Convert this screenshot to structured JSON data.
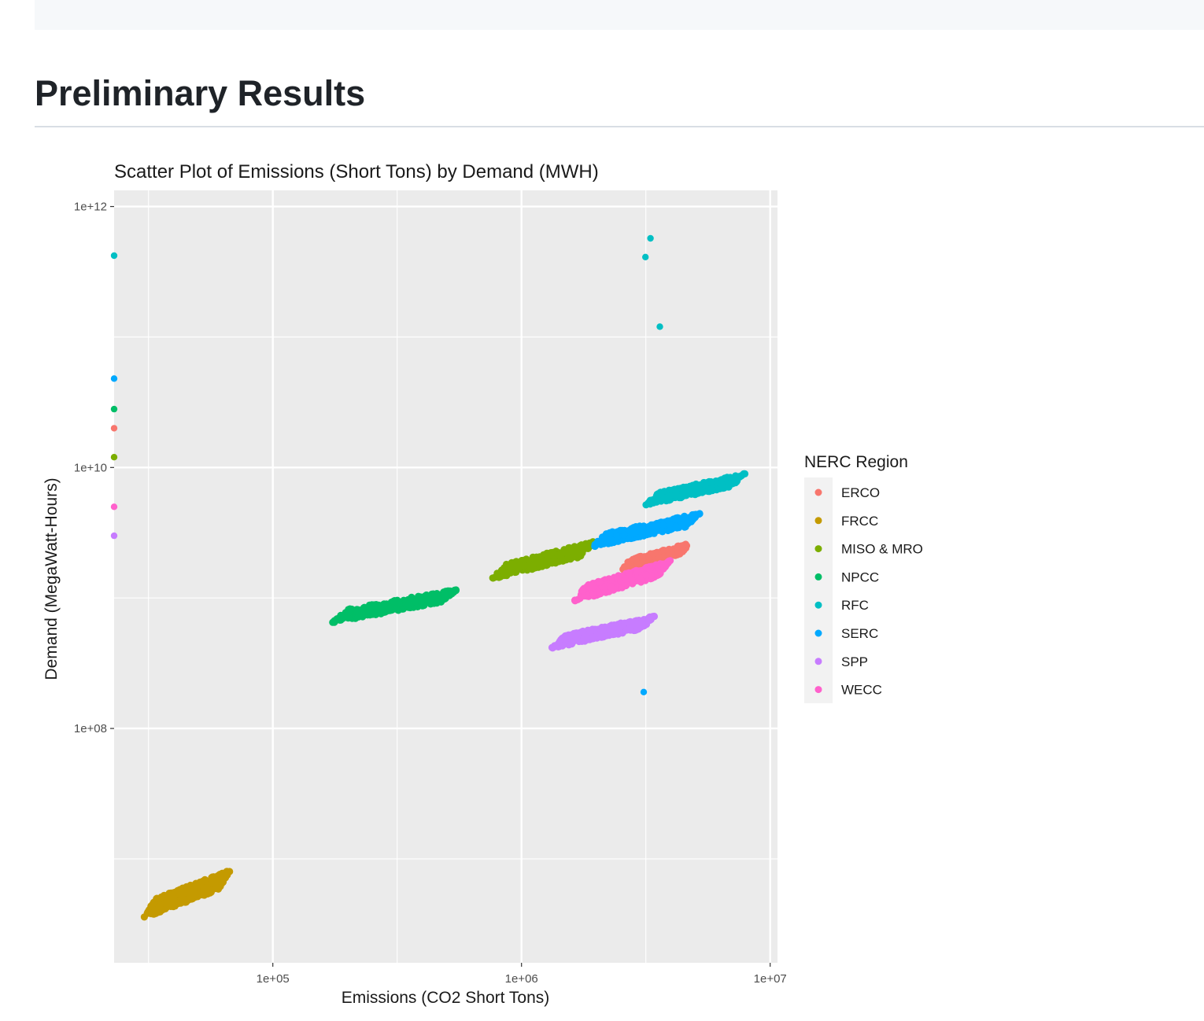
{
  "page": {
    "heading": "Preliminary Results"
  },
  "chart_data": {
    "type": "scatter",
    "title": "Scatter Plot of Emissions (Short Tons) by Demand (MWH)",
    "xlabel": "Emissions (CO2 Short Tons)",
    "ylabel": "Demand (MegaWatt-Hours)",
    "x_scale": "log10",
    "y_scale": "log10",
    "xlim": [
      23000,
      10700000
    ],
    "ylim": [
      1600000,
      1330000000000
    ],
    "x_ticks": [
      100000,
      1000000,
      10000000
    ],
    "x_tick_labels": [
      "1e+05",
      "1e+06",
      "1e+07"
    ],
    "y_ticks": [
      100000000,
      10000000000,
      1000000000000
    ],
    "y_tick_labels": [
      "1e+08",
      "1e+10",
      "1e+12"
    ],
    "grid": true,
    "legend_title": "NERC Region",
    "legend_position": "right",
    "panel_background": "#ebebeb",
    "series": [
      {
        "name": "ERCO",
        "color": "#f8766d",
        "outliers": [
          [
            23000,
            20000000000
          ]
        ],
        "cluster": {
          "x_range": [
            2500000,
            4800000
          ],
          "y_range": [
            1600000000,
            2700000000
          ],
          "n": 170
        }
      },
      {
        "name": "FRCC",
        "color": "#c49a00",
        "cluster": {
          "x_range": [
            30000,
            68000
          ],
          "y_range": [
            3400000,
            8500000
          ],
          "n": 360
        }
      },
      {
        "name": "MISO & MRO",
        "color": "#7cae00",
        "outliers": [
          [
            23000,
            12000000000
          ]
        ],
        "cluster": {
          "x_range": [
            750000,
            2000000
          ],
          "y_range": [
            1350000000,
            2800000000
          ],
          "n": 330
        }
      },
      {
        "name": "NPCC",
        "color": "#00be67",
        "outliers": [
          [
            23000,
            28000000000
          ]
        ],
        "cluster": {
          "x_range": [
            170000,
            560000
          ],
          "y_range": [
            630000000,
            1200000000
          ],
          "n": 300
        }
      },
      {
        "name": "RFC",
        "color": "#00bfc4",
        "outliers": [
          [
            23000,
            420000000000
          ],
          [
            3300000,
            570000000000
          ],
          [
            3150000,
            410000000000
          ],
          [
            3600000,
            120000000000
          ]
        ],
        "cluster": {
          "x_range": [
            3100000,
            8000000
          ],
          "y_range": [
            5000000000,
            9200000000
          ],
          "n": 330
        }
      },
      {
        "name": "SERC",
        "color": "#00a9ff",
        "outliers": [
          [
            23000,
            48000000000
          ],
          [
            3100000,
            190000000
          ]
        ],
        "cluster": {
          "x_range": [
            1900000,
            5300000
          ],
          "y_range": [
            2400000000,
            4600000000
          ],
          "n": 380
        }
      },
      {
        "name": "SPP",
        "color": "#c77cff",
        "outliers": [
          [
            23000,
            3000000000
          ]
        ],
        "cluster": {
          "x_range": [
            1300000,
            3500000
          ],
          "y_range": [
            400000000,
            750000000
          ],
          "n": 330
        }
      },
      {
        "name": "WECC",
        "color": "#ff61cc",
        "outliers": [
          [
            23000,
            5000000000
          ]
        ],
        "cluster": {
          "x_range": [
            1600000,
            4000000
          ],
          "y_range": [
            900000000,
            2000000000
          ],
          "n": 380
        }
      }
    ]
  }
}
